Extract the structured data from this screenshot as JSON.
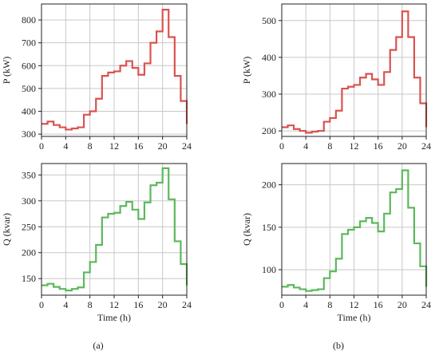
{
  "captions": [
    "(a)",
    "(b)"
  ],
  "chart_data": [
    {
      "panel": "a-top",
      "type": "line",
      "step": true,
      "xlabel": "",
      "ylabel": "P (kW)",
      "xlim": [
        0,
        24
      ],
      "ylim": [
        290,
        870
      ],
      "xticks": [
        0,
        4,
        8,
        12,
        16,
        20,
        24
      ],
      "yticks": [
        300,
        400,
        500,
        600,
        700,
        800
      ],
      "grid": true,
      "color": "#d9534f",
      "series": [
        {
          "x": [
            0,
            1,
            2,
            3,
            4,
            5,
            6,
            7,
            8,
            9,
            10,
            11,
            12,
            13,
            14,
            15,
            16,
            17,
            18,
            19,
            20,
            21,
            22,
            23,
            24
          ],
          "values": [
            345,
            355,
            340,
            330,
            320,
            325,
            330,
            385,
            400,
            455,
            555,
            570,
            575,
            600,
            620,
            590,
            560,
            610,
            700,
            750,
            845,
            725,
            555,
            445,
            345
          ]
        }
      ]
    },
    {
      "panel": "b-top",
      "type": "line",
      "step": true,
      "xlabel": "",
      "ylabel": "P (kW)",
      "xlim": [
        0,
        24
      ],
      "ylim": [
        185,
        545
      ],
      "xticks": [
        0,
        4,
        8,
        12,
        16,
        20,
        24
      ],
      "yticks": [
        200,
        300,
        400,
        500
      ],
      "grid": true,
      "color": "#d9534f",
      "series": [
        {
          "x": [
            0,
            1,
            2,
            3,
            4,
            5,
            6,
            7,
            8,
            9,
            10,
            11,
            12,
            13,
            14,
            15,
            16,
            17,
            18,
            19,
            20,
            21,
            22,
            23,
            24
          ],
          "values": [
            210,
            215,
            205,
            200,
            195,
            198,
            200,
            225,
            235,
            255,
            315,
            320,
            325,
            345,
            355,
            340,
            325,
            360,
            420,
            455,
            525,
            455,
            345,
            275,
            210
          ]
        }
      ]
    },
    {
      "panel": "a-bottom",
      "type": "line",
      "step": true,
      "xlabel": "Time (h)",
      "ylabel": "Q (kvar)",
      "xlim": [
        0,
        24
      ],
      "ylim": [
        118,
        372
      ],
      "xticks": [
        0,
        4,
        8,
        12,
        16,
        20,
        24
      ],
      "yticks": [
        150,
        200,
        250,
        300,
        350
      ],
      "grid": true,
      "color": "#5cb85c",
      "series": [
        {
          "x": [
            0,
            1,
            2,
            3,
            4,
            5,
            6,
            7,
            8,
            9,
            10,
            11,
            12,
            13,
            14,
            15,
            16,
            17,
            18,
            19,
            20,
            21,
            22,
            23,
            24
          ],
          "values": [
            137,
            140,
            134,
            130,
            127,
            130,
            133,
            162,
            182,
            215,
            268,
            275,
            277,
            290,
            298,
            283,
            265,
            297,
            330,
            335,
            363,
            303,
            222,
            178,
            137
          ]
        }
      ]
    },
    {
      "panel": "b-bottom",
      "type": "line",
      "step": true,
      "xlabel": "Time (h)",
      "ylabel": "Q (kvar)",
      "xlim": [
        0,
        24
      ],
      "ylim": [
        70,
        225
      ],
      "xticks": [
        0,
        4,
        8,
        12,
        16,
        20,
        24
      ],
      "yticks": [
        100,
        150,
        200
      ],
      "grid": true,
      "color": "#5cb85c",
      "series": [
        {
          "x": [
            0,
            1,
            2,
            3,
            4,
            5,
            6,
            7,
            8,
            9,
            10,
            11,
            12,
            13,
            14,
            15,
            16,
            17,
            18,
            19,
            20,
            21,
            22,
            23,
            24
          ],
          "values": [
            80,
            82,
            79,
            77,
            75,
            76,
            77,
            90,
            98,
            113,
            142,
            147,
            150,
            157,
            161,
            155,
            145,
            166,
            191,
            195,
            217,
            173,
            131,
            104,
            80
          ]
        }
      ]
    }
  ]
}
